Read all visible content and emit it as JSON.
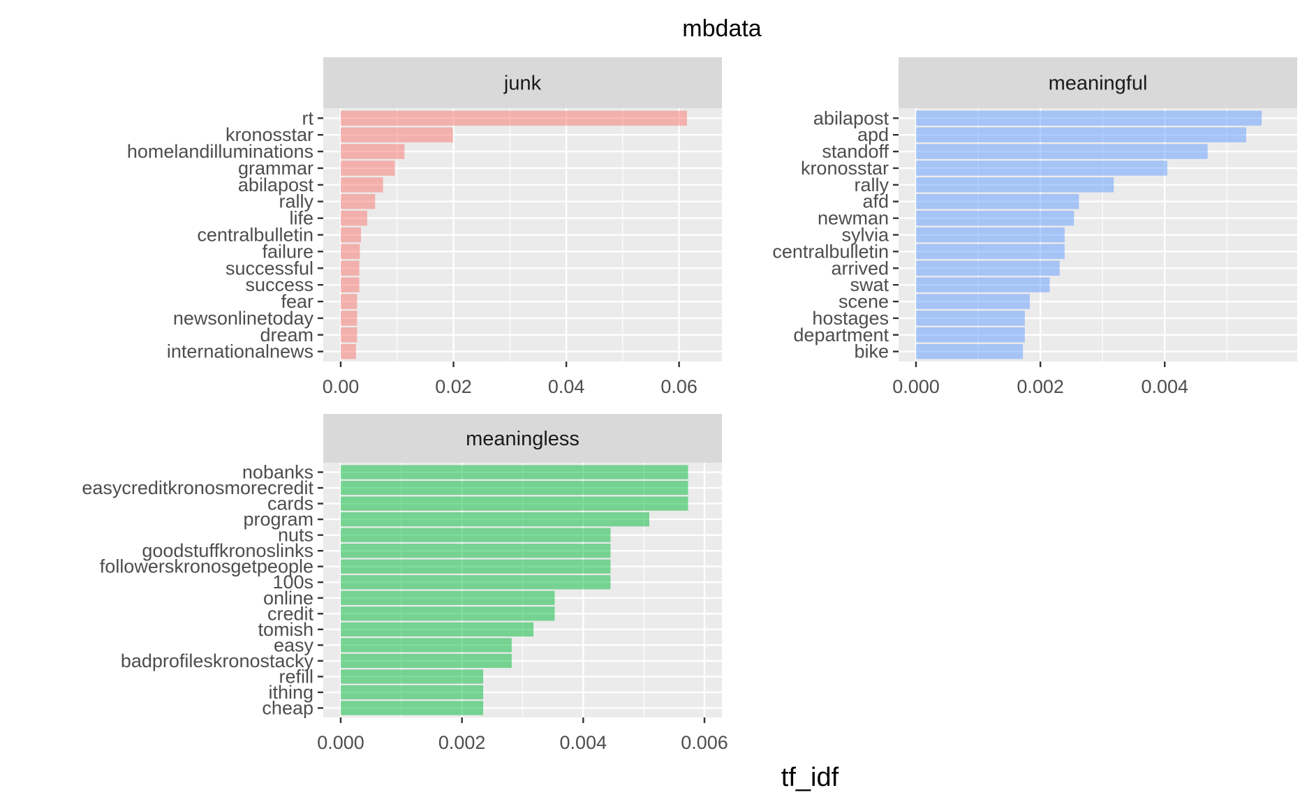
{
  "chart_data": {
    "type": "bar",
    "title": "mbdata",
    "xlabel": "tf_idf",
    "ylabel": "",
    "orientation": "horizontal",
    "grid": true,
    "legend": "none",
    "panels": [
      {
        "name": "junk",
        "color": "#F8766D",
        "xlim": [
          0,
          0.0645
        ],
        "ticks": [
          0,
          0.02,
          0.04,
          0.06
        ],
        "tick_labels": [
          "0.00",
          "0.02",
          "0.04",
          "0.06"
        ],
        "categories": [
          "rt",
          "kronosstar",
          "homelandilluminations",
          "grammar",
          "abilapost",
          "rally",
          "life",
          "centralbulletin",
          "failure",
          "successful",
          "success",
          "fear",
          "newsonlinetoday",
          "dream",
          "internationalnews"
        ],
        "values": [
          0.0614,
          0.0199,
          0.0113,
          0.0096,
          0.0075,
          0.0061,
          0.0047,
          0.0036,
          0.0034,
          0.0033,
          0.0033,
          0.0029,
          0.0029,
          0.0029,
          0.0027
        ]
      },
      {
        "name": "meaningful",
        "color": "#619CFF",
        "xlim": [
          0,
          0.00585
        ],
        "ticks": [
          0,
          0.002,
          0.004
        ],
        "tick_labels": [
          "0.000",
          "0.002",
          "0.004"
        ],
        "categories": [
          "abilapost",
          "apd",
          "standoff",
          "kronosstar",
          "rally",
          "afd",
          "newman",
          "sylvia",
          "centralbulletin",
          "arrived",
          "swat",
          "scene",
          "hostages",
          "department",
          "bike"
        ],
        "values": [
          0.00556,
          0.00531,
          0.00469,
          0.00404,
          0.00318,
          0.00262,
          0.00254,
          0.00239,
          0.00239,
          0.00231,
          0.00215,
          0.00183,
          0.00175,
          0.00175,
          0.00172
        ]
      },
      {
        "name": "meaningless",
        "color": "#00BA38",
        "xlim": [
          0,
          0.006
        ],
        "ticks": [
          0,
          0.002,
          0.004,
          0.006
        ],
        "tick_labels": [
          "0.000",
          "0.002",
          "0.004",
          "0.006"
        ],
        "categories": [
          "nobanks",
          "easycreditkronosmorecredit",
          "cards",
          "program",
          "nuts",
          "goodstuffkronoslinks",
          "followerskronosgetpeople",
          "100s",
          "online",
          "credit",
          "tomish",
          "easy",
          "badprofileskronostacky",
          "refill",
          "ithing",
          "cheap"
        ],
        "values": [
          0.00573,
          0.00573,
          0.00573,
          0.00509,
          0.00445,
          0.00445,
          0.00445,
          0.00445,
          0.00353,
          0.00353,
          0.00318,
          0.00282,
          0.00282,
          0.00235,
          0.00235,
          0.00235
        ]
      }
    ]
  },
  "colors": {
    "panel_background": "#EBEBEB",
    "grid": "#FFFFFF",
    "strip_background": "#D9D9D9",
    "bar_opacity": 0.5
  }
}
